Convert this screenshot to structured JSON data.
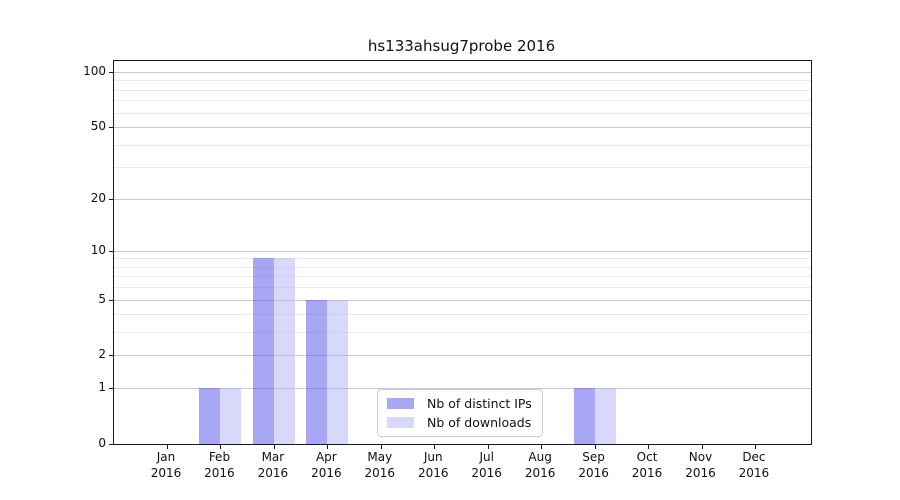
{
  "figure": {
    "title": "hs133ahsug7probe 2016",
    "background_color": "#ffffff"
  },
  "chart_data": {
    "type": "bar",
    "title": "hs133ahsug7probe 2016",
    "xlabel": "",
    "ylabel": "",
    "categories": [
      {
        "month": "Jan",
        "year": "2016"
      },
      {
        "month": "Feb",
        "year": "2016"
      },
      {
        "month": "Mar",
        "year": "2016"
      },
      {
        "month": "Apr",
        "year": "2016"
      },
      {
        "month": "May",
        "year": "2016"
      },
      {
        "month": "Jun",
        "year": "2016"
      },
      {
        "month": "Jul",
        "year": "2016"
      },
      {
        "month": "Aug",
        "year": "2016"
      },
      {
        "month": "Sep",
        "year": "2016"
      },
      {
        "month": "Oct",
        "year": "2016"
      },
      {
        "month": "Nov",
        "year": "2016"
      },
      {
        "month": "Dec",
        "year": "2016"
      }
    ],
    "series": [
      {
        "name": "Nb of distinct IPs",
        "swatch_color": "#a7a7f3",
        "fill_color": "rgba(80,80,235,0.5)",
        "values": [
          0,
          1,
          9,
          5,
          0,
          0,
          0,
          0,
          1,
          0,
          0,
          0
        ]
      },
      {
        "name": "Nb of downloads",
        "swatch_color": "#d8d8fa",
        "fill_color": "rgba(178,178,245,0.5)",
        "values": [
          0,
          1,
          9,
          5,
          0,
          0,
          0,
          0,
          1,
          0,
          0,
          0
        ]
      }
    ],
    "yscale": "log1p",
    "y_major_ticks": [
      0,
      1,
      2,
      5,
      10,
      20,
      50,
      100
    ],
    "y_minor_ticks": [
      3,
      4,
      6,
      7,
      8,
      9,
      30,
      40,
      60,
      70,
      80,
      90
    ],
    "ylim": [
      0,
      115
    ],
    "grid": "both",
    "legend_position": "lower center",
    "axis_color": "#1a1a1a",
    "major_grid_color": "#c9c9c9",
    "minor_grid_color": "#ebebeb"
  }
}
